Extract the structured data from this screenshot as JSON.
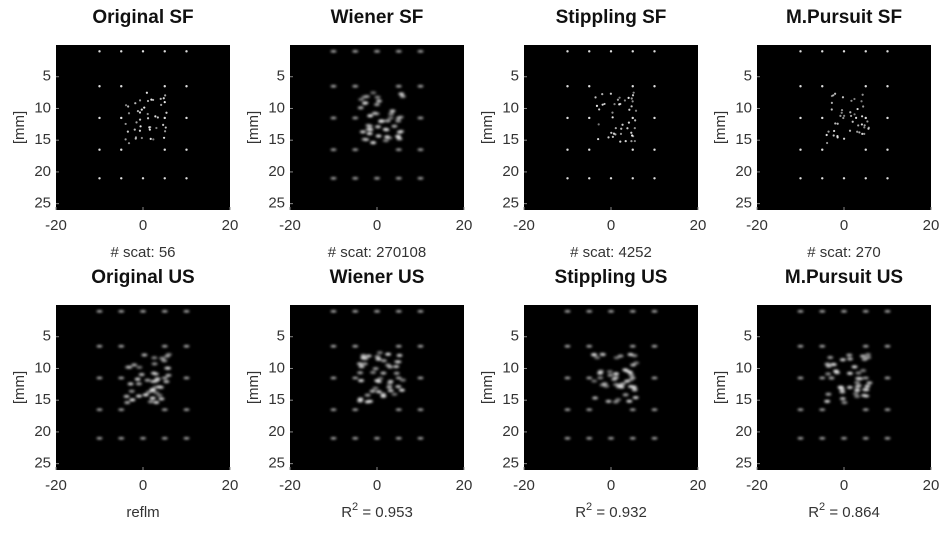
{
  "chart_data": [
    {
      "type": "image",
      "title": "Original SF",
      "ylabel": "[mm]",
      "caption_parts": [
        {
          "text": "# scat: 56"
        }
      ],
      "xlim": [
        -20,
        20
      ],
      "xticks": [
        -20,
        0,
        20
      ],
      "ylim": [
        0,
        26
      ],
      "yticks": [
        5,
        10,
        15,
        20,
        25
      ],
      "y_reversed": true,
      "style": "points"
    },
    {
      "type": "image",
      "title": "Wiener SF",
      "ylabel": "[mm]",
      "caption_parts": [
        {
          "text": "# scat: 270108"
        }
      ],
      "xlim": [
        -20,
        20
      ],
      "xticks": [
        -20,
        0,
        20
      ],
      "ylim": [
        0,
        26
      ],
      "yticks": [
        5,
        10,
        15,
        20,
        25
      ],
      "y_reversed": true,
      "style": "blur"
    },
    {
      "type": "image",
      "title": "Stippling SF",
      "ylabel": "[mm]",
      "caption_parts": [
        {
          "text": "# scat: 4252"
        }
      ],
      "xlim": [
        -20,
        20
      ],
      "xticks": [
        -20,
        0,
        20
      ],
      "ylim": [
        0,
        26
      ],
      "yticks": [
        5,
        10,
        15,
        20,
        25
      ],
      "y_reversed": true,
      "style": "points"
    },
    {
      "type": "image",
      "title": "M.Pursuit SF",
      "ylabel": "[mm]",
      "caption_parts": [
        {
          "text": "# scat: 270"
        }
      ],
      "xlim": [
        -20,
        20
      ],
      "xticks": [
        -20,
        0,
        20
      ],
      "ylim": [
        0,
        26
      ],
      "yticks": [
        5,
        10,
        15,
        20,
        25
      ],
      "y_reversed": true,
      "style": "points"
    },
    {
      "type": "image",
      "title": "Original US",
      "ylabel": "[mm]",
      "caption_parts": [
        {
          "text": "reflm"
        }
      ],
      "xlim": [
        -20,
        20
      ],
      "xticks": [
        -20,
        0,
        20
      ],
      "ylim": [
        0,
        26
      ],
      "yticks": [
        5,
        10,
        15,
        20,
        25
      ],
      "y_reversed": true,
      "style": "blur"
    },
    {
      "type": "image",
      "title": "Wiener US",
      "ylabel": "[mm]",
      "caption_parts": [
        {
          "text": "R"
        },
        {
          "text": "2",
          "sup": true
        },
        {
          "text": " = 0.953"
        }
      ],
      "xlim": [
        -20,
        20
      ],
      "xticks": [
        -20,
        0,
        20
      ],
      "ylim": [
        0,
        26
      ],
      "yticks": [
        5,
        10,
        15,
        20,
        25
      ],
      "y_reversed": true,
      "style": "blur"
    },
    {
      "type": "image",
      "title": "Stippling US",
      "ylabel": "[mm]",
      "caption_parts": [
        {
          "text": "R"
        },
        {
          "text": "2",
          "sup": true
        },
        {
          "text": " = 0.932"
        }
      ],
      "xlim": [
        -20,
        20
      ],
      "xticks": [
        -20,
        0,
        20
      ],
      "ylim": [
        0,
        26
      ],
      "yticks": [
        5,
        10,
        15,
        20,
        25
      ],
      "y_reversed": true,
      "style": "blur"
    },
    {
      "type": "image",
      "title": "M.Pursuit US",
      "ylabel": "[mm]",
      "caption_parts": [
        {
          "text": "R"
        },
        {
          "text": "2",
          "sup": true
        },
        {
          "text": " = 0.864"
        }
      ],
      "xlim": [
        -20,
        20
      ],
      "xticks": [
        -20,
        0,
        20
      ],
      "ylim": [
        0,
        26
      ],
      "yticks": [
        5,
        10,
        15,
        20,
        25
      ],
      "y_reversed": true,
      "style": "blur"
    }
  ]
}
